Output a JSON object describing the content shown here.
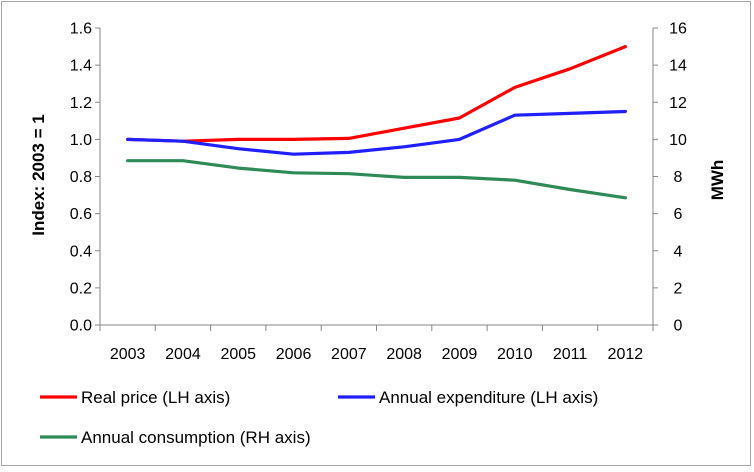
{
  "chart_data": {
    "type": "line",
    "title": "",
    "x": [
      "2003",
      "2004",
      "2005",
      "2006",
      "2007",
      "2008",
      "2009",
      "2010",
      "2011",
      "2012"
    ],
    "left_axis": {
      "label": "Index: 2003 = 1",
      "range": [
        0,
        1.6
      ],
      "ticks": [
        "0.0",
        "0.2",
        "0.4",
        "0.6",
        "0.8",
        "1.0",
        "1.2",
        "1.4",
        "1.6"
      ]
    },
    "right_axis": {
      "label": "MWh",
      "range": [
        0,
        16
      ],
      "ticks": [
        "0",
        "2",
        "4",
        "6",
        "8",
        "10",
        "12",
        "14",
        "16"
      ]
    },
    "series": [
      {
        "name": "Real price (LH axis)",
        "axis": "left",
        "color": "#ff0000",
        "values": [
          1.0,
          0.99,
          1.0,
          1.0,
          1.005,
          1.06,
          1.115,
          1.28,
          1.38,
          1.5
        ]
      },
      {
        "name": "Annual expenditure (LH axis)",
        "axis": "left",
        "color": "#1f1fff",
        "values": [
          1.0,
          0.99,
          0.95,
          0.92,
          0.93,
          0.96,
          1.0,
          1.13,
          1.14,
          1.15
        ]
      },
      {
        "name": "Annual consumption (RH axis)",
        "axis": "right",
        "color": "#2e8b57",
        "values": [
          8.85,
          8.85,
          8.45,
          8.2,
          8.15,
          7.95,
          7.95,
          7.8,
          7.3,
          6.85
        ]
      }
    ],
    "grid": false,
    "legend_position": "bottom"
  }
}
